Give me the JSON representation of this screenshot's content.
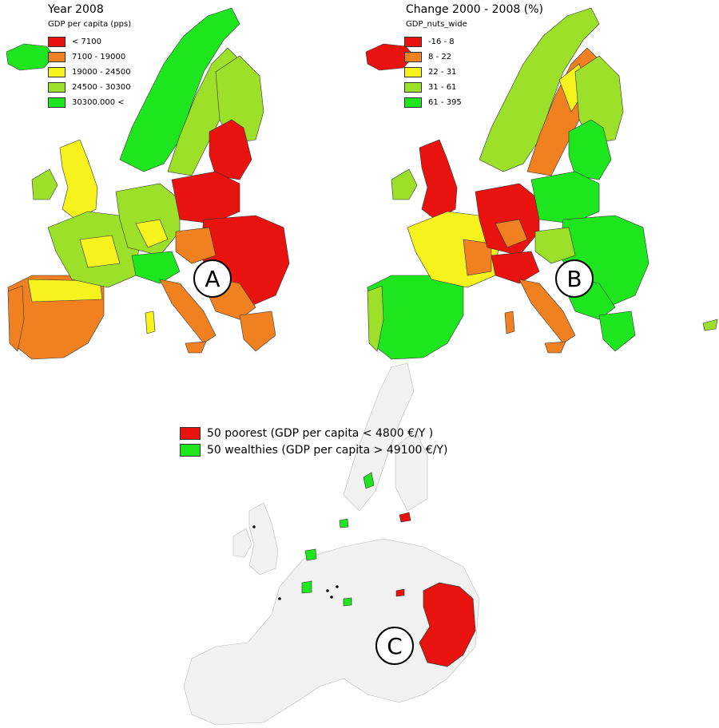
{
  "panel_a": {
    "title": "Year 2008",
    "legend_title": "GDP per capita (pps)",
    "legend": [
      {
        "label": "< 7100",
        "color": "#e8120f"
      },
      {
        "label": "7100 - 19000",
        "color": "#f08020"
      },
      {
        "label": "19000 - 24500",
        "color": "#f5f21e"
      },
      {
        "label": "24500 - 30300",
        "color": "#9de02a"
      },
      {
        "label": "30300.000 <",
        "color": "#1ee61e"
      }
    ],
    "badge": "A"
  },
  "panel_b": {
    "title": "Change 2000 - 2008 (%)",
    "legend_title": "GDP_nuts_wide",
    "legend": [
      {
        "label": "-16 - 8",
        "color": "#e8120f"
      },
      {
        "label": "8 - 22",
        "color": "#f08020"
      },
      {
        "label": "22 - 31",
        "color": "#f5f21e"
      },
      {
        "label": "31 - 61",
        "color": "#9de02a"
      },
      {
        "label": "61 - 395",
        "color": "#1ee61e"
      }
    ],
    "badge": "B"
  },
  "panel_c": {
    "legend": [
      {
        "label": "50 poorest (GDP per capita < 4800 €/Y )",
        "color": "#e8120f"
      },
      {
        "label": "50 wealthies (GDP per capita > 49100 €/Y)",
        "color": "#1ee61e"
      }
    ],
    "badge": "C",
    "base_color": "#f2f2f2"
  }
}
